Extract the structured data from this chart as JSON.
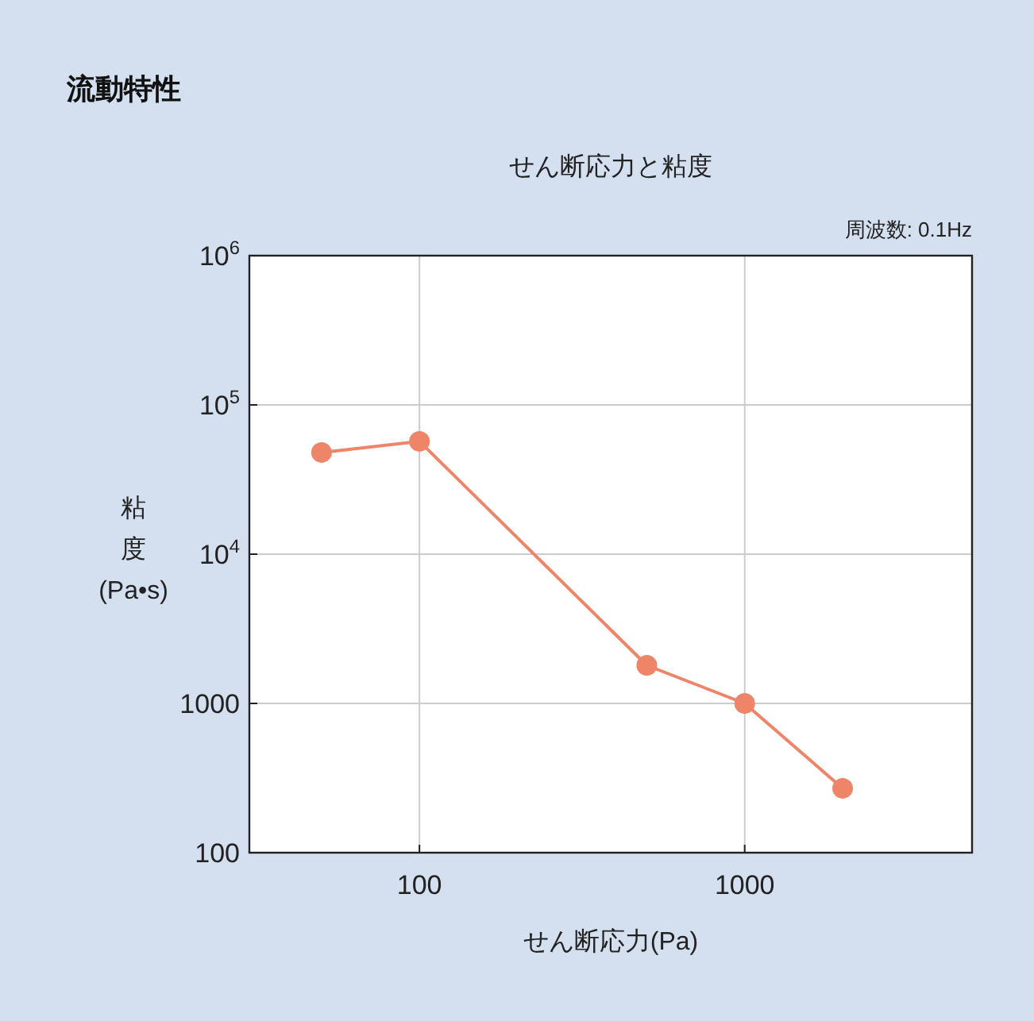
{
  "chart_data": {
    "type": "line",
    "title": "流動特性",
    "subtitle": "せん断応力と粘度",
    "xlabel": "せん断応力(Pa)",
    "ylabel": "粘度(Pa•s)",
    "annotations": [
      "周波数: 0.1Hz"
    ],
    "log": "xy",
    "xlim": [
      30,
      5000
    ],
    "ylim": [
      100,
      1000000
    ],
    "xticks": [
      100,
      1000
    ],
    "yticks": [
      100,
      1000,
      {
        "value": 10000,
        "label": "10$^{4}$"
      },
      {
        "value": 100000,
        "label": "10$^{5}$"
      },
      {
        "value": 1000000,
        "label": "10$^{6}$"
      }
    ],
    "grid": true,
    "marker": "circle",
    "line_style": "solid",
    "series": [
      {
        "color": "#ee8468",
        "x": [
          50,
          100,
          500,
          1000,
          2000
        ],
        "values": [
          48000,
          57000,
          1800,
          1000,
          270
        ]
      }
    ]
  }
}
